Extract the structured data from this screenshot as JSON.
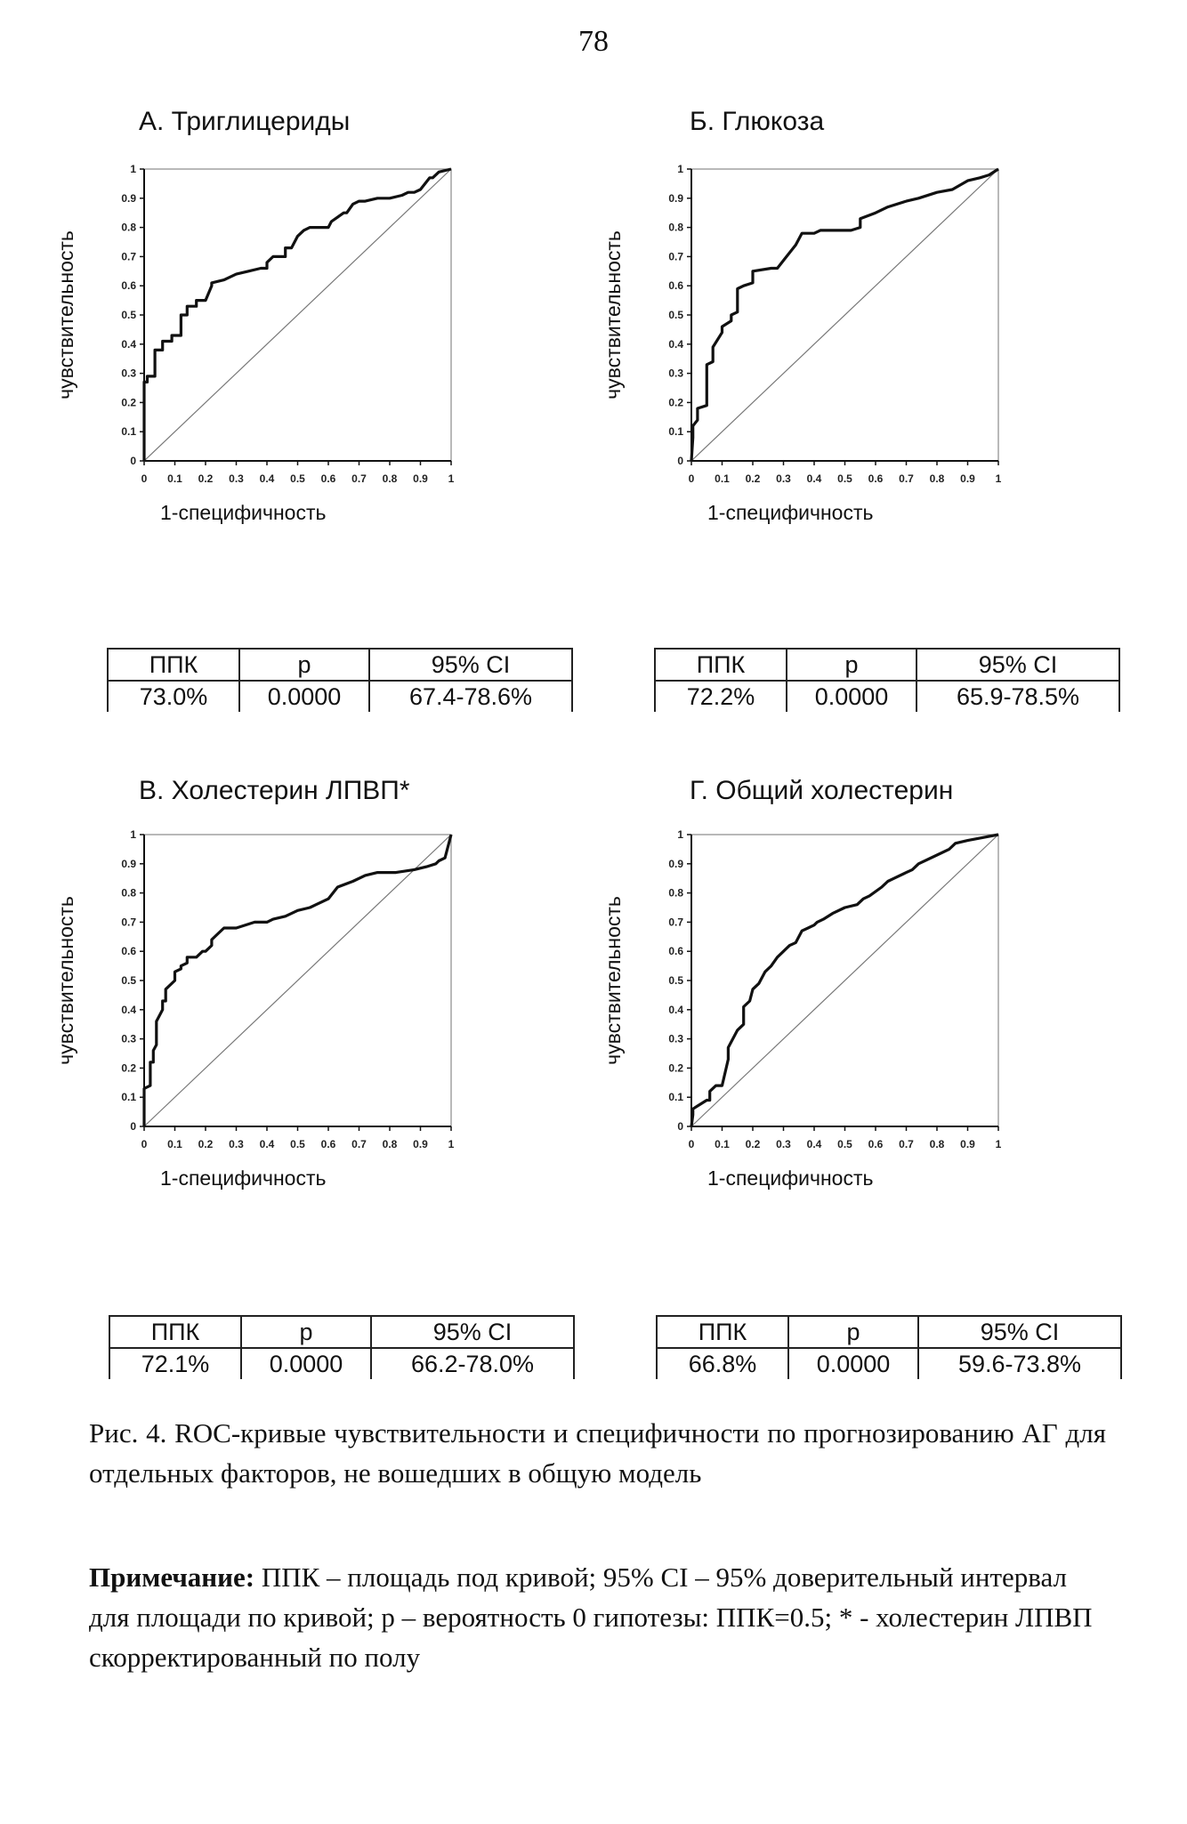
{
  "page_number": "78",
  "panels": [
    {
      "title": "А. Триглицериды",
      "table": {
        "headers": [
          "ППК",
          "p",
          "95% CI"
        ],
        "values": [
          "73.0%",
          "0.0000",
          "67.4-78.6%"
        ]
      }
    },
    {
      "title": "Б. Глюкоза",
      "table": {
        "headers": [
          "ППК",
          "p",
          "95% CI"
        ],
        "values": [
          "72.2%",
          "0.0000",
          "65.9-78.5%"
        ]
      }
    },
    {
      "title": "В. Холестерин ЛПВП*",
      "table": {
        "headers": [
          "ППК",
          "p",
          "95% CI"
        ],
        "values": [
          "72.1%",
          "0.0000",
          "66.2-78.0%"
        ]
      }
    },
    {
      "title": "Г. Общий холестерин",
      "table": {
        "headers": [
          "ППК",
          "p",
          "95% CI"
        ],
        "values": [
          "66.8%",
          "0.0000",
          "59.6-73.8%"
        ]
      }
    }
  ],
  "caption": "Рис. 4. ROC-кривые чувствительности и специфичности по прогнозированию АГ для отдельных факторов, не вошедших в общую модель",
  "note": {
    "label": "Примечание:",
    "text": " ППК – площадь под кривой; 95% CI – 95% доверительный интервал для площади по кривой; p – вероятность 0 гипотезы: ППК=0.5; * - холестерин ЛПВП скорректированный по полу"
  },
  "chart_data": [
    {
      "type": "line",
      "title": "А. Триглицериды",
      "xlabel": "1-специфичность",
      "ylabel": "чувствительность",
      "xlim": [
        0,
        1
      ],
      "ylim": [
        0,
        1
      ],
      "xticks": [
        "0",
        "0.1",
        "0.2",
        "0.3",
        "0.4",
        "0.5",
        "0.6",
        "0.7",
        "0.8",
        "0.9",
        "1"
      ],
      "yticks": [
        "0",
        "0.1",
        "0.2",
        "0.3",
        "0.4",
        "0.5",
        "0.6",
        "0.7",
        "0.8",
        "0.9",
        "1"
      ],
      "grid": false,
      "series": [
        {
          "x": [
            0,
            0,
            0.01,
            0.01,
            0.035,
            0.035,
            0.06,
            0.06,
            0.09,
            0.09,
            0.12,
            0.12,
            0.14,
            0.14,
            0.17,
            0.17,
            0.2,
            0.22,
            0.22,
            0.26,
            0.3,
            0.34,
            0.38,
            0.4,
            0.4,
            0.42,
            0.46,
            0.46,
            0.48,
            0.5,
            0.52,
            0.54,
            0.58,
            0.6,
            0.61,
            0.65,
            0.66,
            0.68,
            0.7,
            0.72,
            0.76,
            0.8,
            0.84,
            0.86,
            0.88,
            0.9,
            0.93,
            0.94,
            0.96,
            1.0
          ],
          "y": [
            0,
            0.27,
            0.27,
            0.29,
            0.29,
            0.38,
            0.38,
            0.41,
            0.41,
            0.43,
            0.43,
            0.5,
            0.5,
            0.53,
            0.53,
            0.55,
            0.55,
            0.6,
            0.61,
            0.62,
            0.64,
            0.65,
            0.66,
            0.66,
            0.68,
            0.7,
            0.7,
            0.73,
            0.73,
            0.77,
            0.79,
            0.8,
            0.8,
            0.8,
            0.82,
            0.85,
            0.85,
            0.88,
            0.89,
            0.89,
            0.9,
            0.9,
            0.91,
            0.92,
            0.92,
            0.93,
            0.97,
            0.97,
            0.99,
            1.0
          ]
        },
        {
          "x": [
            0,
            1
          ],
          "y": [
            0,
            1
          ]
        }
      ]
    },
    {
      "type": "line",
      "title": "Б. Глюкоза",
      "xlabel": "1-специфичность",
      "ylabel": "чувствительность",
      "xlim": [
        0,
        1
      ],
      "ylim": [
        0,
        1
      ],
      "xticks": [
        "0",
        "0.1",
        "0.2",
        "0.3",
        "0.4",
        "0.5",
        "0.6",
        "0.7",
        "0.8",
        "0.9",
        "1"
      ],
      "yticks": [
        "0",
        "0.1",
        "0.2",
        "0.3",
        "0.4",
        "0.5",
        "0.6",
        "0.7",
        "0.8",
        "0.9",
        "1"
      ],
      "grid": false,
      "series": [
        {
          "x": [
            0,
            0.005,
            0.005,
            0.02,
            0.02,
            0.05,
            0.05,
            0.07,
            0.07,
            0.1,
            0.1,
            0.13,
            0.13,
            0.15,
            0.15,
            0.17,
            0.17,
            0.2,
            0.2,
            0.26,
            0.28,
            0.31,
            0.34,
            0.36,
            0.38,
            0.38,
            0.4,
            0.42,
            0.52,
            0.55,
            0.55,
            0.6,
            0.64,
            0.7,
            0.74,
            0.8,
            0.85,
            0.9,
            0.94,
            0.97,
            1.0
          ],
          "y": [
            0,
            0.08,
            0.12,
            0.14,
            0.18,
            0.19,
            0.33,
            0.34,
            0.39,
            0.44,
            0.46,
            0.48,
            0.5,
            0.51,
            0.59,
            0.6,
            0.6,
            0.61,
            0.65,
            0.66,
            0.66,
            0.7,
            0.74,
            0.78,
            0.78,
            0.78,
            0.78,
            0.79,
            0.79,
            0.8,
            0.83,
            0.85,
            0.87,
            0.89,
            0.9,
            0.92,
            0.93,
            0.96,
            0.97,
            0.98,
            1.0
          ]
        },
        {
          "x": [
            0,
            1
          ],
          "y": [
            0,
            1
          ]
        }
      ]
    },
    {
      "type": "line",
      "title": "В. Холестерин ЛПВП*",
      "xlabel": "1-специфичность",
      "ylabel": "чувствительность",
      "xlim": [
        0,
        1
      ],
      "ylim": [
        0,
        1
      ],
      "xticks": [
        "0",
        "0.1",
        "0.2",
        "0.3",
        "0.4",
        "0.5",
        "0.6",
        "0.7",
        "0.8",
        "0.9",
        "1"
      ],
      "yticks": [
        "0",
        "0.1",
        "0.2",
        "0.3",
        "0.4",
        "0.5",
        "0.6",
        "0.7",
        "0.8",
        "0.9",
        "1"
      ],
      "grid": false,
      "series": [
        {
          "x": [
            0,
            0,
            0.02,
            0.02,
            0.03,
            0.03,
            0.04,
            0.04,
            0.06,
            0.06,
            0.07,
            0.07,
            0.1,
            0.1,
            0.12,
            0.12,
            0.14,
            0.14,
            0.17,
            0.19,
            0.2,
            0.22,
            0.22,
            0.24,
            0.26,
            0.3,
            0.36,
            0.4,
            0.42,
            0.46,
            0.48,
            0.5,
            0.54,
            0.56,
            0.6,
            0.63,
            0.68,
            0.72,
            0.76,
            0.82,
            0.88,
            0.92,
            0.95,
            0.96,
            0.98,
            1.0
          ],
          "y": [
            0,
            0.13,
            0.14,
            0.22,
            0.22,
            0.26,
            0.28,
            0.36,
            0.4,
            0.43,
            0.43,
            0.47,
            0.5,
            0.53,
            0.54,
            0.55,
            0.56,
            0.58,
            0.58,
            0.6,
            0.6,
            0.62,
            0.64,
            0.66,
            0.68,
            0.68,
            0.7,
            0.7,
            0.71,
            0.72,
            0.73,
            0.74,
            0.75,
            0.76,
            0.78,
            0.82,
            0.84,
            0.86,
            0.87,
            0.87,
            0.88,
            0.89,
            0.9,
            0.91,
            0.92,
            1.0
          ]
        },
        {
          "x": [
            0,
            1
          ],
          "y": [
            0,
            1
          ]
        }
      ]
    },
    {
      "type": "line",
      "title": "Г. Общий холестерин",
      "xlabel": "1-специфичность",
      "ylabel": "чувствительность",
      "xlim": [
        0,
        1
      ],
      "ylim": [
        0,
        1
      ],
      "xticks": [
        "0",
        "0.1",
        "0.2",
        "0.3",
        "0.4",
        "0.5",
        "0.6",
        "0.7",
        "0.8",
        "0.9",
        "1"
      ],
      "yticks": [
        "0",
        "0.1",
        "0.2",
        "0.3",
        "0.4",
        "0.5",
        "0.6",
        "0.7",
        "0.8",
        "0.9",
        "1"
      ],
      "grid": false,
      "series": [
        {
          "x": [
            0,
            0.005,
            0.005,
            0.02,
            0.05,
            0.06,
            0.06,
            0.08,
            0.1,
            0.12,
            0.12,
            0.15,
            0.17,
            0.17,
            0.19,
            0.2,
            0.22,
            0.24,
            0.26,
            0.28,
            0.3,
            0.31,
            0.32,
            0.34,
            0.36,
            0.38,
            0.4,
            0.41,
            0.43,
            0.46,
            0.5,
            0.54,
            0.56,
            0.58,
            0.62,
            0.64,
            0.66,
            0.7,
            0.72,
            0.74,
            0.8,
            0.84,
            0.86,
            0.9,
            0.95,
            1.0
          ],
          "y": [
            0,
            0.04,
            0.06,
            0.07,
            0.09,
            0.09,
            0.12,
            0.14,
            0.14,
            0.23,
            0.27,
            0.33,
            0.35,
            0.41,
            0.43,
            0.47,
            0.49,
            0.53,
            0.55,
            0.58,
            0.6,
            0.61,
            0.62,
            0.63,
            0.67,
            0.68,
            0.69,
            0.7,
            0.71,
            0.73,
            0.75,
            0.76,
            0.78,
            0.79,
            0.82,
            0.84,
            0.85,
            0.87,
            0.88,
            0.9,
            0.93,
            0.95,
            0.97,
            0.98,
            0.99,
            1.0
          ]
        },
        {
          "x": [
            0,
            1
          ],
          "y": [
            0,
            1
          ]
        }
      ]
    }
  ]
}
